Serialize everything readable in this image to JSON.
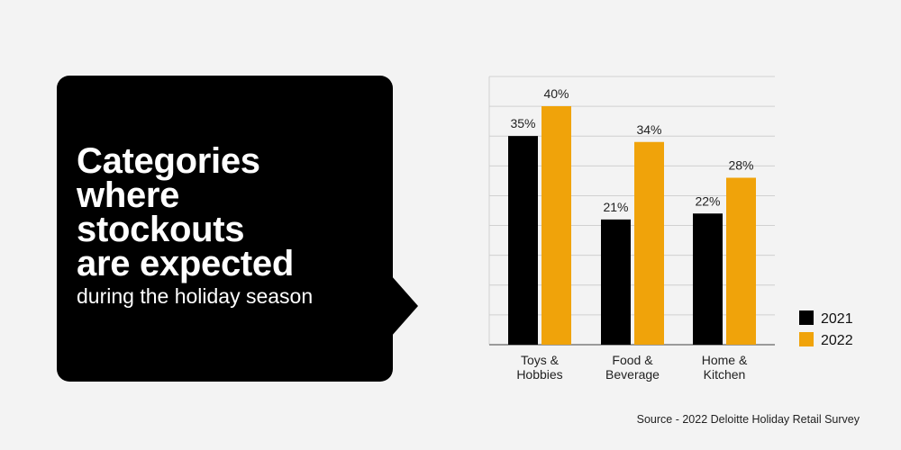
{
  "callout": {
    "headline_lines": [
      "Categories",
      "where",
      "stockouts",
      "are expected"
    ],
    "subline": "during the holiday season"
  },
  "colors": {
    "background": "#f3f3f3",
    "callout": "#000000",
    "series_2021": "#000000",
    "series_2022": "#f0a30a",
    "grid": "#d0d0d0"
  },
  "chart_data": {
    "type": "bar",
    "title": "",
    "xlabel": "",
    "ylabel": "",
    "ylim": [
      0,
      40
    ],
    "grid": true,
    "legend_position": "bottom-right",
    "categories": [
      [
        "Toys &",
        "Hobbies"
      ],
      [
        "Food &",
        "Beverage"
      ],
      [
        "Home &",
        "Kitchen"
      ]
    ],
    "series": [
      {
        "name": "2021",
        "values": [
          35,
          21,
          22
        ],
        "labels": [
          "35%",
          "21%",
          "22%"
        ]
      },
      {
        "name": "2022",
        "values": [
          40,
          34,
          28
        ],
        "labels": [
          "40%",
          "34%",
          "28%"
        ]
      }
    ]
  },
  "source": "Source - 2022 Deloitte Holiday Retail Survey"
}
